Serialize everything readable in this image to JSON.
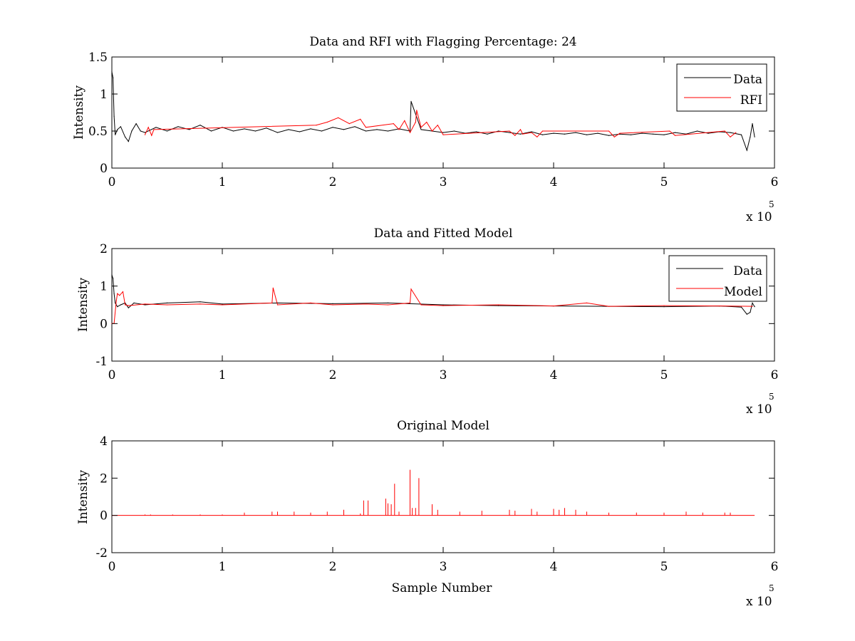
{
  "figure": {
    "background": "#ffffff",
    "axis_color": "#000000"
  },
  "chart_data": [
    {
      "type": "line",
      "title": "Data and RFI with Flagging Percentage: 24",
      "xlabel": "",
      "ylabel": "Intensity",
      "xlim": [
        0,
        6
      ],
      "ylim": [
        0,
        1.5
      ],
      "xticks": [
        0,
        1,
        2,
        3,
        4,
        5,
        6
      ],
      "xtick_labels": [
        "0",
        "1",
        "2",
        "3",
        "4",
        "5",
        "6"
      ],
      "yticks": [
        0,
        0.5,
        1,
        1.5
      ],
      "ytick_labels": [
        "0",
        "0.5",
        "1",
        "1.5"
      ],
      "x_multiplier_label": "x 10",
      "x_multiplier_exponent": "5",
      "legend_position": "top-right",
      "grid": false,
      "series": [
        {
          "name": "Data",
          "color": "#000000",
          "x": [
            0,
            0.01,
            0.02,
            0.03,
            0.05,
            0.08,
            0.12,
            0.15,
            0.18,
            0.22,
            0.26,
            0.3,
            0.4,
            0.5,
            0.6,
            0.7,
            0.8,
            0.9,
            1.0,
            1.1,
            1.2,
            1.3,
            1.4,
            1.5,
            1.6,
            1.7,
            1.8,
            1.9,
            2.0,
            2.1,
            2.2,
            2.3,
            2.4,
            2.5,
            2.6,
            2.7,
            2.71,
            2.8,
            2.9,
            3.0,
            3.1,
            3.2,
            3.3,
            3.4,
            3.5,
            3.6,
            3.7,
            3.8,
            3.9,
            4.0,
            4.1,
            4.2,
            4.3,
            4.4,
            4.5,
            4.6,
            4.7,
            4.8,
            4.9,
            5.0,
            5.1,
            5.2,
            5.3,
            5.4,
            5.5,
            5.6,
            5.7,
            5.75,
            5.78,
            5.8,
            5.82
          ],
          "values": [
            1.3,
            1.22,
            0.7,
            0.45,
            0.52,
            0.56,
            0.42,
            0.36,
            0.5,
            0.6,
            0.5,
            0.48,
            0.55,
            0.5,
            0.56,
            0.52,
            0.58,
            0.5,
            0.55,
            0.5,
            0.53,
            0.5,
            0.54,
            0.48,
            0.52,
            0.49,
            0.53,
            0.5,
            0.55,
            0.52,
            0.56,
            0.5,
            0.52,
            0.5,
            0.53,
            0.5,
            0.9,
            0.52,
            0.5,
            0.48,
            0.5,
            0.47,
            0.49,
            0.46,
            0.5,
            0.48,
            0.46,
            0.49,
            0.45,
            0.47,
            0.46,
            0.48,
            0.45,
            0.47,
            0.44,
            0.46,
            0.45,
            0.47,
            0.46,
            0.45,
            0.48,
            0.46,
            0.5,
            0.47,
            0.49,
            0.48,
            0.45,
            0.24,
            0.42,
            0.6,
            0.42
          ]
        },
        {
          "name": "RFI",
          "color": "#ff0000",
          "x": [
            0.3,
            0.33,
            0.36,
            0.38,
            1.85,
            1.95,
            2.05,
            2.15,
            2.25,
            2.3,
            2.55,
            2.6,
            2.65,
            2.7,
            2.75,
            2.76,
            2.8,
            2.85,
            2.9,
            2.95,
            3.0,
            3.6,
            3.65,
            3.7,
            3.72,
            3.8,
            3.85,
            3.9,
            4.5,
            4.55,
            4.6,
            5.05,
            5.1,
            5.55,
            5.6,
            5.65
          ],
          "values": [
            0.45,
            0.55,
            0.44,
            0.52,
            0.58,
            0.62,
            0.68,
            0.6,
            0.66,
            0.55,
            0.6,
            0.52,
            0.64,
            0.48,
            0.62,
            0.78,
            0.55,
            0.62,
            0.5,
            0.58,
            0.45,
            0.5,
            0.44,
            0.52,
            0.46,
            0.48,
            0.42,
            0.5,
            0.5,
            0.42,
            0.47,
            0.5,
            0.44,
            0.5,
            0.42,
            0.48
          ]
        }
      ]
    },
    {
      "type": "line",
      "title": "Data and Fitted Model",
      "xlabel": "",
      "ylabel": "Intensity",
      "xlim": [
        0,
        6
      ],
      "ylim": [
        -1,
        2
      ],
      "xticks": [
        0,
        1,
        2,
        3,
        4,
        5,
        6
      ],
      "xtick_labels": [
        "0",
        "1",
        "2",
        "3",
        "4",
        "5",
        "6"
      ],
      "yticks": [
        -1,
        0,
        1,
        2
      ],
      "ytick_labels": [
        "-1",
        "0",
        "1",
        "2"
      ],
      "x_multiplier_label": "x 10",
      "x_multiplier_exponent": "5",
      "legend_position": "top-right",
      "grid": false,
      "series": [
        {
          "name": "Data",
          "color": "#000000",
          "x": [
            0,
            0.01,
            0.02,
            0.03,
            0.05,
            0.08,
            0.12,
            0.15,
            0.2,
            0.3,
            0.5,
            0.8,
            1.0,
            1.5,
            2.0,
            2.5,
            3.0,
            3.5,
            4.0,
            4.5,
            5.0,
            5.5,
            5.7,
            5.75,
            5.78,
            5.8,
            5.82
          ],
          "values": [
            1.3,
            1.2,
            0.8,
            0.55,
            0.45,
            0.5,
            0.55,
            0.42,
            0.55,
            0.5,
            0.55,
            0.58,
            0.52,
            0.55,
            0.53,
            0.55,
            0.5,
            0.48,
            0.47,
            0.46,
            0.45,
            0.47,
            0.44,
            0.25,
            0.3,
            0.55,
            0.45
          ]
        },
        {
          "name": "Model",
          "color": "#ff0000",
          "x": [
            0.0,
            0.02,
            0.04,
            0.05,
            0.07,
            0.1,
            0.12,
            0.15,
            0.3,
            0.5,
            0.8,
            1.0,
            1.45,
            1.46,
            1.5,
            1.8,
            2.0,
            2.3,
            2.5,
            2.7,
            2.71,
            2.8,
            3.0,
            3.5,
            4.0,
            4.3,
            4.5,
            5.0,
            5.5,
            5.8
          ],
          "values": [
            0.0,
            0.0,
            0.6,
            0.8,
            0.75,
            0.85,
            0.5,
            0.48,
            0.52,
            0.5,
            0.52,
            0.5,
            0.55,
            0.95,
            0.5,
            0.55,
            0.5,
            0.52,
            0.5,
            0.55,
            0.92,
            0.5,
            0.48,
            0.5,
            0.47,
            0.55,
            0.46,
            0.48,
            0.47,
            0.46
          ]
        }
      ]
    },
    {
      "type": "line",
      "title": "Original Model",
      "xlabel": "Sample Number",
      "ylabel": "Intensity",
      "xlim": [
        0,
        6
      ],
      "ylim": [
        -2,
        4
      ],
      "xticks": [
        0,
        1,
        2,
        3,
        4,
        5,
        6
      ],
      "xtick_labels": [
        "0",
        "1",
        "2",
        "3",
        "4",
        "5",
        "6"
      ],
      "yticks": [
        -2,
        0,
        2,
        4
      ],
      "ytick_labels": [
        "-2",
        "0",
        "2",
        "4"
      ],
      "x_multiplier_label": "x 10",
      "x_multiplier_exponent": "5",
      "grid": false,
      "series": [
        {
          "color": "#ff0000",
          "baseline_x": [
            0,
            5.82
          ],
          "baseline_value": 0,
          "spikes_x": [
            0.3,
            0.35,
            0.55,
            0.8,
            1.0,
            1.2,
            1.45,
            1.5,
            1.65,
            1.8,
            1.95,
            2.1,
            2.25,
            2.28,
            2.32,
            2.48,
            2.5,
            2.53,
            2.56,
            2.6,
            2.7,
            2.72,
            2.75,
            2.78,
            2.9,
            2.95,
            3.15,
            3.35,
            3.6,
            3.65,
            3.8,
            3.85,
            4.0,
            4.05,
            4.1,
            4.2,
            4.3,
            4.5,
            4.75,
            5.0,
            5.2,
            5.35,
            5.55,
            5.6
          ],
          "spikes_values": [
            0.05,
            0.05,
            0.05,
            0.05,
            0.05,
            0.15,
            0.2,
            0.2,
            0.2,
            0.15,
            0.2,
            0.3,
            0.1,
            0.8,
            0.8,
            0.9,
            0.65,
            0.6,
            1.7,
            0.2,
            2.45,
            0.4,
            0.4,
            2.0,
            0.6,
            0.3,
            0.2,
            0.25,
            0.3,
            0.25,
            0.35,
            0.2,
            0.35,
            0.3,
            0.4,
            0.3,
            0.2,
            0.15,
            0.15,
            0.15,
            0.2,
            0.15,
            0.15,
            0.15
          ]
        }
      ]
    }
  ]
}
